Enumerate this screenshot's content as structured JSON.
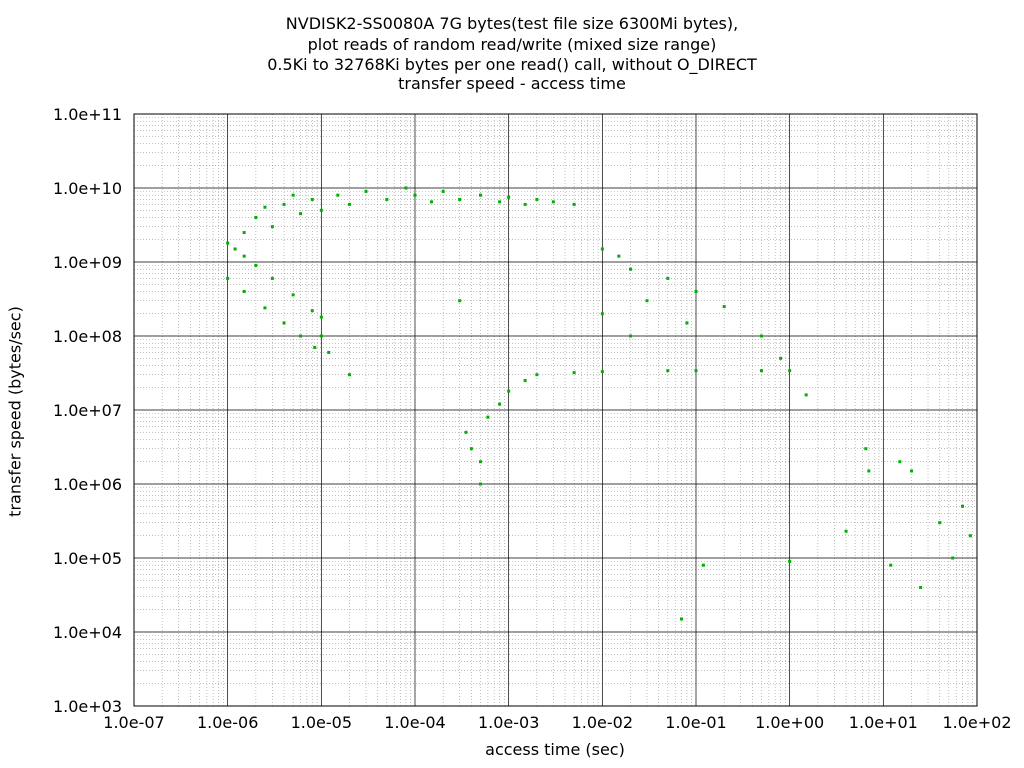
{
  "chart_data": {
    "type": "scatter",
    "title_lines": [
      "NVDISK2-SS0080A 7G bytes(test file size 6300Mi bytes),",
      "plot reads of random read/write (mixed size range)",
      "0.5Ki to 32768Ki bytes per one read() call, without O_DIRECT",
      "transfer speed - access time"
    ],
    "xlabel": "access time (sec)",
    "ylabel": "transfer speed (bytes/sec)",
    "x_scale": "log",
    "y_scale": "log",
    "xlim": [
      1e-07,
      100
    ],
    "ylim": [
      1000,
      100000000000.0
    ],
    "x_ticks": [
      "1.0e-07",
      "1.0e-06",
      "1.0e-05",
      "1.0e-04",
      "1.0e-03",
      "1.0e-02",
      "1.0e-01",
      "1.0e+00",
      "1.0e+01",
      "1.0e+02"
    ],
    "y_ticks": [
      "1.0e+03",
      "1.0e+04",
      "1.0e+05",
      "1.0e+06",
      "1.0e+07",
      "1.0e+08",
      "1.0e+09",
      "1.0e+10",
      "1.0e+11"
    ],
    "grid": true,
    "point_color": "#00b000",
    "series": [
      {
        "values": [
          [
            1e-06,
            1800000000.0
          ],
          [
            1.2e-06,
            1500000000.0
          ],
          [
            1.5e-06,
            1200000000.0
          ],
          [
            2e-06,
            900000000.0
          ],
          [
            3e-06,
            600000000.0
          ],
          [
            5e-06,
            360000000.0
          ],
          [
            8e-06,
            220000000.0
          ],
          [
            1e-05,
            180000000.0
          ],
          [
            1e-06,
            600000000.0
          ],
          [
            1.5e-06,
            400000000.0
          ],
          [
            2.5e-06,
            240000000.0
          ],
          [
            4e-06,
            150000000.0
          ],
          [
            6e-06,
            100000000.0
          ],
          [
            8.5e-06,
            70000000.0
          ],
          [
            1.5e-06,
            2500000000.0
          ],
          [
            2e-06,
            4000000000.0
          ],
          [
            2.5e-06,
            5500000000.0
          ],
          [
            3e-06,
            3000000000.0
          ],
          [
            4e-06,
            6000000000.0
          ],
          [
            5e-06,
            8000000000.0
          ],
          [
            6e-06,
            4500000000.0
          ],
          [
            8e-06,
            7000000000.0
          ],
          [
            1e-05,
            5000000000.0
          ],
          [
            1.5e-05,
            8000000000.0
          ],
          [
            2e-05,
            6000000000.0
          ],
          [
            3e-05,
            9000000000.0
          ],
          [
            5e-05,
            7000000000.0
          ],
          [
            8e-05,
            10000000000.0
          ],
          [
            0.0001,
            8000000000.0
          ],
          [
            0.00015,
            6500000000.0
          ],
          [
            0.0002,
            9000000000.0
          ],
          [
            0.0003,
            7000000000.0
          ],
          [
            0.0005,
            8000000000.0
          ],
          [
            0.0008,
            6500000000.0
          ],
          [
            0.001,
            7500000000.0
          ],
          [
            0.0015,
            6000000000.0
          ],
          [
            0.002,
            7000000000.0
          ],
          [
            0.003,
            6500000000.0
          ],
          [
            0.005,
            6000000000.0
          ],
          [
            1e-05,
            100000000.0
          ],
          [
            1.2e-05,
            60000000.0
          ],
          [
            2e-05,
            30000000.0
          ],
          [
            0.0003,
            300000000.0
          ],
          [
            0.00035,
            5000000.0
          ],
          [
            0.0004,
            3000000.0
          ],
          [
            0.0005,
            2000000.0
          ],
          [
            0.0005,
            1000000.0
          ],
          [
            0.0006,
            8000000.0
          ],
          [
            0.0008,
            12000000.0
          ],
          [
            0.001,
            18000000.0
          ],
          [
            0.0015,
            25000000.0
          ],
          [
            0.002,
            30000000.0
          ],
          [
            0.005,
            32000000.0
          ],
          [
            0.01,
            33000000.0
          ],
          [
            0.05,
            34000000.0
          ],
          [
            0.1,
            34000000.0
          ],
          [
            0.5,
            34000000.0
          ],
          [
            1.0,
            34000000.0
          ],
          [
            0.01,
            1500000000.0
          ],
          [
            0.015,
            1200000000.0
          ],
          [
            0.02,
            800000000.0
          ],
          [
            0.05,
            600000000.0
          ],
          [
            0.1,
            400000000.0
          ],
          [
            0.2,
            250000000.0
          ],
          [
            0.5,
            100000000.0
          ],
          [
            0.8,
            50000000.0
          ],
          [
            0.01,
            200000000.0
          ],
          [
            0.02,
            100000000.0
          ],
          [
            0.03,
            300000000.0
          ],
          [
            0.08,
            150000000.0
          ],
          [
            1.5,
            16000000.0
          ],
          [
            0.07,
            15000.0
          ],
          [
            0.12,
            80000.0
          ],
          [
            1.0,
            90000.0
          ],
          [
            4.0,
            230000.0
          ],
          [
            6.5,
            3000000.0
          ],
          [
            7.0,
            1500000.0
          ],
          [
            12.0,
            80000.0
          ],
          [
            15.0,
            2000000.0
          ],
          [
            20.0,
            1500000.0
          ],
          [
            25.0,
            40000.0
          ],
          [
            40.0,
            300000.0
          ],
          [
            55.0,
            100000.0
          ],
          [
            70.0,
            500000.0
          ],
          [
            85.0,
            200000.0
          ]
        ]
      }
    ]
  }
}
